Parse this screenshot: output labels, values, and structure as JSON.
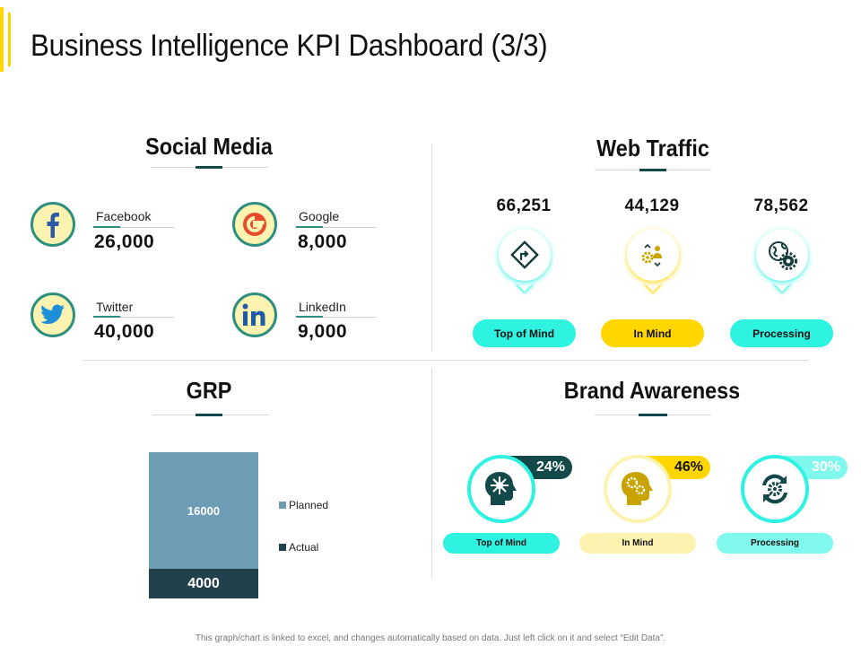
{
  "title": "Business Intelligence KPI Dashboard (3/3)",
  "colors": {
    "accent_yellow": "#ffd600",
    "teal_dark": "#134a49",
    "teal": "#2f8f7f",
    "cyan": "#2ef3e0",
    "pale_yellow": "#fdf3b0",
    "light_cyan": "#7ff8ee"
  },
  "social_media": {
    "title": "Social Media",
    "items": [
      {
        "name": "Facebook",
        "value": "26,000",
        "icon": "facebook-icon"
      },
      {
        "name": "Google",
        "value": "8,000",
        "icon": "google-icon"
      },
      {
        "name": "Twitter",
        "value": "40,000",
        "icon": "twitter-icon"
      },
      {
        "name": "LinkedIn",
        "value": "9,000",
        "icon": "linkedin-icon"
      }
    ]
  },
  "web_traffic": {
    "title": "Web Traffic",
    "items": [
      {
        "value": "66,251",
        "label": "Top of Mind",
        "icon": "road-sign-icon"
      },
      {
        "value": "44,129",
        "label": "In Mind",
        "icon": "person-gears-icon"
      },
      {
        "value": "78,562",
        "label": "Processing",
        "icon": "globe-gear-icon"
      }
    ]
  },
  "grp": {
    "title": "GRP",
    "planned_label": "16000",
    "actual_label": "4000",
    "legend": [
      "Planned",
      "Actual"
    ]
  },
  "brand_awareness": {
    "title": "Brand Awareness",
    "items": [
      {
        "percent": "24%",
        "label": "Top of Mind",
        "icon": "head-burst-icon"
      },
      {
        "percent": "46%",
        "label": "In Mind",
        "icon": "head-gears-icon"
      },
      {
        "percent": "30%",
        "label": "Processing",
        "icon": "gear-cycle-icon"
      }
    ]
  },
  "footer": "This graph/chart is linked to excel, and changes automatically  based on data. Just left click on it and select “Edit Data”."
}
